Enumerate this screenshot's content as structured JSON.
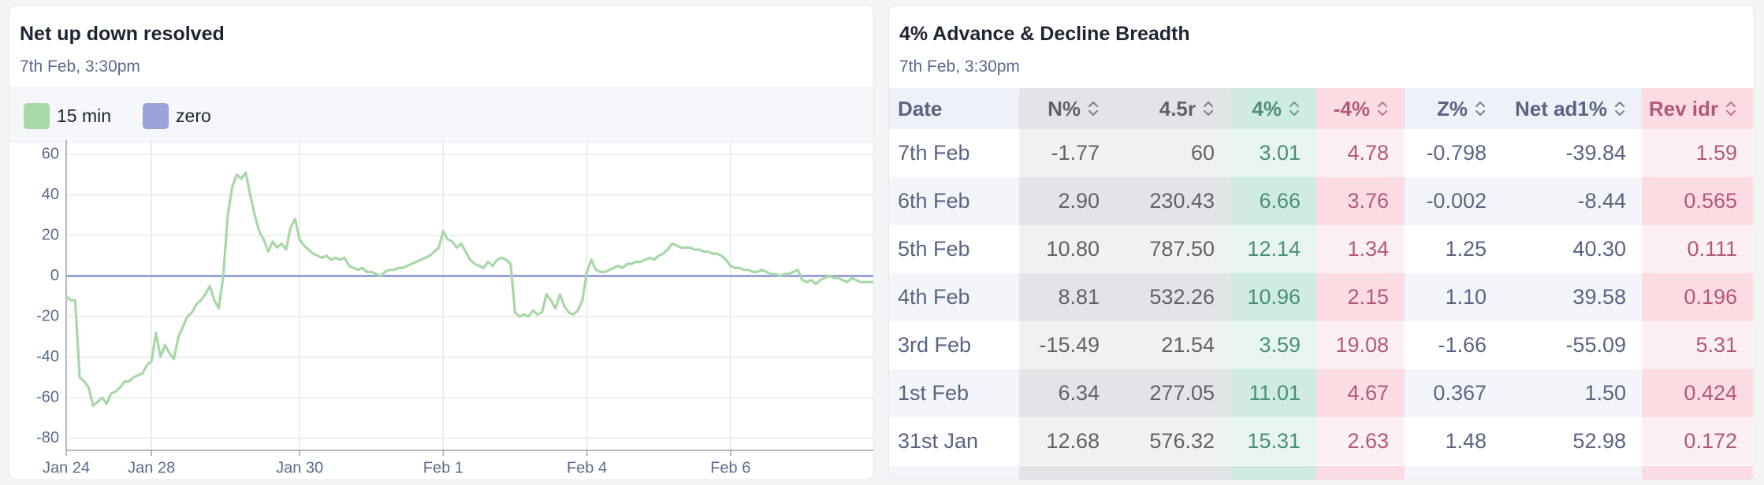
{
  "chart_data": {
    "type": "line",
    "title": "Net up down resolved",
    "subtitle": "7th Feb, 3:30pm",
    "categories": [
      "Jan 24",
      null,
      null,
      null,
      null,
      null,
      null,
      null,
      null,
      null,
      null,
      null,
      null,
      null,
      null,
      null,
      null,
      null,
      null,
      "Jan 28",
      null,
      null,
      null,
      null,
      null,
      null,
      null,
      null,
      null,
      null,
      null,
      null,
      null,
      null,
      null,
      null,
      null,
      null,
      null,
      null,
      null,
      null,
      null,
      null,
      null,
      null,
      null,
      null,
      null,
      null,
      null,
      null,
      "Jan 30",
      null,
      null,
      null,
      null,
      null,
      null,
      null,
      null,
      null,
      null,
      null,
      null,
      null,
      null,
      null,
      null,
      null,
      null,
      null,
      null,
      null,
      null,
      null,
      null,
      null,
      null,
      null,
      null,
      null,
      null,
      null,
      "Feb 1",
      null,
      null,
      null,
      null,
      null,
      null,
      null,
      null,
      null,
      null,
      null,
      null,
      null,
      null,
      null,
      null,
      null,
      null,
      null,
      null,
      null,
      null,
      null,
      null,
      null,
      null,
      null,
      null,
      null,
      null,
      null,
      "Feb 4",
      null,
      null,
      null,
      null,
      null,
      null,
      null,
      null,
      null,
      null,
      null,
      null,
      null,
      null,
      null,
      null,
      null,
      null,
      null,
      null,
      null,
      null,
      null,
      null,
      null,
      null,
      null,
      null,
      null,
      null,
      null,
      "Feb 6",
      null,
      null,
      null,
      null,
      null,
      null,
      null,
      null,
      null,
      null,
      null,
      null,
      null,
      null,
      null,
      null,
      null,
      null,
      null,
      null,
      null,
      null,
      null,
      null,
      null,
      null,
      null,
      null,
      null,
      null,
      null,
      null
    ],
    "series": [
      {
        "name": "15 min",
        "color": "#a8d8a8",
        "values": [
          -10,
          -12,
          -12,
          -50,
          -52,
          -55,
          -64,
          -62,
          -60,
          -63,
          -58,
          -57,
          -55,
          -52,
          -52,
          -50,
          -49,
          -48,
          -44,
          -42,
          -28,
          -40,
          -34,
          -38,
          -41,
          -30,
          -25,
          -20,
          -18,
          -14,
          -12,
          -9,
          -5,
          -12,
          -16,
          0,
          30,
          44,
          50,
          48,
          51,
          40,
          30,
          22,
          18,
          12,
          17,
          14,
          16,
          13,
          24,
          28,
          18,
          15,
          13,
          11,
          10,
          9,
          10,
          8,
          9,
          8,
          9,
          5,
          4,
          3,
          4,
          2,
          2,
          1,
          0,
          2,
          3,
          3,
          4,
          4,
          5,
          6,
          7,
          8,
          9,
          10,
          12,
          14,
          22,
          18,
          17,
          14,
          16,
          12,
          8,
          6,
          5,
          4,
          7,
          5,
          8,
          9,
          8,
          6,
          -18,
          -20,
          -19,
          -20,
          -17,
          -19,
          -18,
          -9,
          -12,
          -16,
          -9,
          -15,
          -18,
          -19,
          -17,
          -12,
          2,
          8,
          3,
          2,
          2,
          3,
          4,
          5,
          4,
          6,
          6,
          7,
          7,
          8,
          9,
          8,
          10,
          11,
          13,
          16,
          15,
          14,
          14,
          14,
          13,
          13,
          12,
          12,
          11,
          11,
          10,
          8,
          5,
          4,
          4,
          3,
          3,
          2,
          2,
          3,
          2,
          1,
          1,
          0,
          1,
          1,
          2,
          3,
          -2,
          -3,
          -2,
          -4,
          -2,
          -1,
          0,
          -1,
          -1,
          -2,
          -3,
          -1,
          -2,
          -3,
          -3,
          -3,
          -3
        ]
      },
      {
        "name": "zero",
        "color": "#9aa3dc",
        "values": [
          0,
          0,
          0,
          0,
          0,
          0,
          0,
          0,
          0,
          0,
          0,
          0,
          0,
          0,
          0,
          0,
          0,
          0,
          0,
          0,
          0,
          0,
          0,
          0,
          0,
          0,
          0,
          0,
          0,
          0,
          0,
          0,
          0,
          0,
          0,
          0,
          0,
          0,
          0,
          0,
          0,
          0,
          0,
          0,
          0,
          0,
          0,
          0,
          0,
          0,
          0,
          0,
          0,
          0,
          0,
          0,
          0,
          0,
          0,
          0,
          0,
          0,
          0,
          0,
          0,
          0,
          0,
          0,
          0,
          0,
          0,
          0,
          0,
          0,
          0,
          0,
          0,
          0,
          0,
          0,
          0,
          0,
          0,
          0,
          0,
          0,
          0,
          0,
          0,
          0,
          0,
          0,
          0,
          0,
          0,
          0,
          0,
          0,
          0,
          0,
          0,
          0,
          0,
          0,
          0,
          0,
          0,
          0,
          0,
          0,
          0,
          0,
          0,
          0,
          0,
          0,
          0,
          0,
          0,
          0,
          0,
          0,
          0,
          0,
          0,
          0,
          0,
          0,
          0,
          0,
          0,
          0,
          0,
          0,
          0,
          0,
          0,
          0,
          0,
          0,
          0,
          0,
          0,
          0,
          0,
          0,
          0,
          0,
          0,
          0,
          0,
          0,
          0,
          0,
          0,
          0,
          0,
          0,
          0,
          0,
          0,
          0,
          0,
          0,
          0,
          0,
          0,
          0,
          0,
          0,
          0,
          0,
          0,
          0,
          0,
          0,
          0,
          0,
          0,
          0,
          0
        ]
      }
    ],
    "ylim": [
      -86,
      67
    ],
    "yticks": [
      60,
      40,
      20,
      0,
      -20,
      -40,
      -60,
      -80
    ],
    "grid": true
  },
  "table_panel": {
    "title": "4% Advance & Decline Breadth",
    "subtitle": "7th Feb, 3:30pm",
    "columns": [
      "Date",
      "N%",
      "4.5r",
      "4%",
      "-4%",
      "Z%",
      "Net ad1%",
      "Rev idr"
    ],
    "rows": [
      [
        "7th Feb",
        "-1.77",
        "60",
        "3.01",
        "4.78",
        "-0.798",
        "-39.84",
        "1.59"
      ],
      [
        "6th Feb",
        "2.90",
        "230.43",
        "6.66",
        "3.76",
        "-0.002",
        "-8.44",
        "0.565"
      ],
      [
        "5th Feb",
        "10.80",
        "787.50",
        "12.14",
        "1.34",
        "1.25",
        "40.30",
        "0.111"
      ],
      [
        "4th Feb",
        "8.81",
        "532.26",
        "10.96",
        "2.15",
        "1.10",
        "39.58",
        "0.196"
      ],
      [
        "3rd Feb",
        "-15.49",
        "21.54",
        "3.59",
        "19.08",
        "-1.66",
        "-55.09",
        "5.31"
      ],
      [
        "1st Feb",
        "6.34",
        "277.05",
        "11.01",
        "4.67",
        "0.367",
        "1.50",
        "0.424"
      ],
      [
        "31st Jan",
        "12.68",
        "576.32",
        "15.31",
        "2.63",
        "1.48",
        "52.98",
        "0.172"
      ]
    ]
  }
}
